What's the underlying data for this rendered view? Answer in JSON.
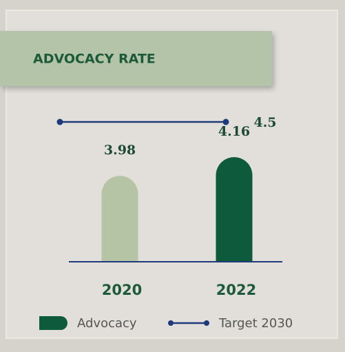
{
  "chart_data": {
    "type": "bar",
    "title": "ADVOCACY RATE",
    "categories": [
      "2020",
      "2022"
    ],
    "series": [
      {
        "name": "Advocacy",
        "color": "#0e5a3c",
        "colors": [
          "#b5c4a5",
          "#0e5a3c"
        ],
        "values": [
          3.98,
          4.16
        ]
      }
    ],
    "target": {
      "name": "Target 2030",
      "value": 4.5,
      "color": "#1f3a7a"
    },
    "ylim": [
      3.15,
      4.68
    ]
  }
}
